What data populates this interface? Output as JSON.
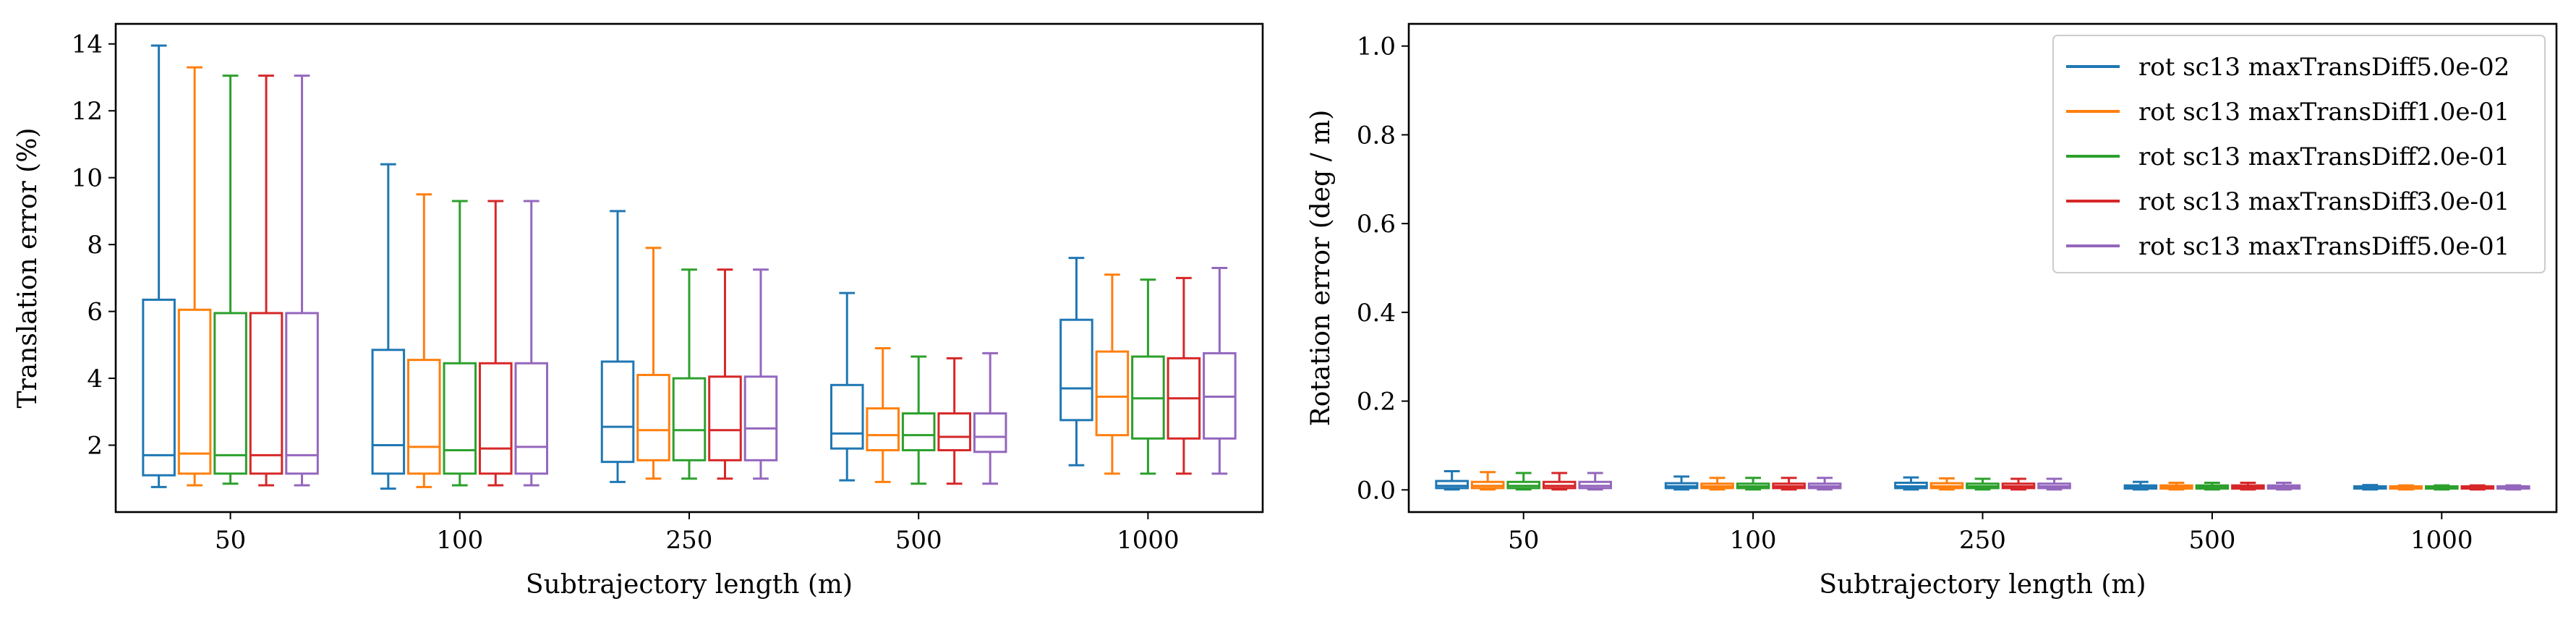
{
  "chart_data": [
    {
      "type": "box",
      "title": "",
      "xlabel": "Subtrajectory length (m)",
      "ylabel": "Translation error (%)",
      "ylim": [
        0.0,
        14.6
      ],
      "yticks": [
        2,
        4,
        6,
        8,
        10,
        12,
        14
      ],
      "categories": [
        "50",
        "100",
        "250",
        "500",
        "1000"
      ],
      "series": [
        {
          "color": "#1f77b4",
          "boxes": [
            {
              "whislo": 0.75,
              "q1": 1.1,
              "med": 1.7,
              "q3": 6.35,
              "whishi": 13.95
            },
            {
              "whislo": 0.7,
              "q1": 1.15,
              "med": 2.0,
              "q3": 4.85,
              "whishi": 10.4
            },
            {
              "whislo": 0.9,
              "q1": 1.5,
              "med": 2.55,
              "q3": 4.5,
              "whishi": 9.0
            },
            {
              "whislo": 0.95,
              "q1": 1.9,
              "med": 2.35,
              "q3": 3.8,
              "whishi": 6.55
            },
            {
              "whislo": 1.4,
              "q1": 2.75,
              "med": 3.7,
              "q3": 5.75,
              "whishi": 7.6
            }
          ]
        },
        {
          "color": "#ff7f0e",
          "boxes": [
            {
              "whislo": 0.8,
              "q1": 1.15,
              "med": 1.75,
              "q3": 6.05,
              "whishi": 13.3
            },
            {
              "whislo": 0.75,
              "q1": 1.15,
              "med": 1.95,
              "q3": 4.55,
              "whishi": 9.5
            },
            {
              "whislo": 1.0,
              "q1": 1.55,
              "med": 2.45,
              "q3": 4.1,
              "whishi": 7.9
            },
            {
              "whislo": 0.9,
              "q1": 1.85,
              "med": 2.3,
              "q3": 3.1,
              "whishi": 4.9
            },
            {
              "whislo": 1.15,
              "q1": 2.3,
              "med": 3.45,
              "q3": 4.8,
              "whishi": 7.1
            }
          ]
        },
        {
          "color": "#2ca02c",
          "boxes": [
            {
              "whislo": 0.85,
              "q1": 1.15,
              "med": 1.7,
              "q3": 5.95,
              "whishi": 13.05
            },
            {
              "whislo": 0.8,
              "q1": 1.15,
              "med": 1.85,
              "q3": 4.45,
              "whishi": 9.3
            },
            {
              "whislo": 1.0,
              "q1": 1.55,
              "med": 2.45,
              "q3": 4.0,
              "whishi": 7.25
            },
            {
              "whislo": 0.85,
              "q1": 1.85,
              "med": 2.3,
              "q3": 2.95,
              "whishi": 4.65
            },
            {
              "whislo": 1.15,
              "q1": 2.2,
              "med": 3.4,
              "q3": 4.65,
              "whishi": 6.95
            }
          ]
        },
        {
          "color": "#d62728",
          "boxes": [
            {
              "whislo": 0.8,
              "q1": 1.15,
              "med": 1.7,
              "q3": 5.95,
              "whishi": 13.05
            },
            {
              "whislo": 0.8,
              "q1": 1.15,
              "med": 1.9,
              "q3": 4.45,
              "whishi": 9.3
            },
            {
              "whislo": 1.0,
              "q1": 1.55,
              "med": 2.45,
              "q3": 4.05,
              "whishi": 7.25
            },
            {
              "whislo": 0.85,
              "q1": 1.85,
              "med": 2.25,
              "q3": 2.95,
              "whishi": 4.6
            },
            {
              "whislo": 1.15,
              "q1": 2.2,
              "med": 3.4,
              "q3": 4.6,
              "whishi": 7.0
            }
          ]
        },
        {
          "color": "#9467bd",
          "boxes": [
            {
              "whislo": 0.8,
              "q1": 1.15,
              "med": 1.7,
              "q3": 5.95,
              "whishi": 13.05
            },
            {
              "whislo": 0.8,
              "q1": 1.15,
              "med": 1.95,
              "q3": 4.45,
              "whishi": 9.3
            },
            {
              "whislo": 1.0,
              "q1": 1.55,
              "med": 2.5,
              "q3": 4.05,
              "whishi": 7.25
            },
            {
              "whislo": 0.85,
              "q1": 1.8,
              "med": 2.25,
              "q3": 2.95,
              "whishi": 4.75
            },
            {
              "whislo": 1.15,
              "q1": 2.2,
              "med": 3.45,
              "q3": 4.75,
              "whishi": 7.3
            }
          ]
        }
      ]
    },
    {
      "type": "box",
      "title": "",
      "xlabel": "Subtrajectory length (m)",
      "ylabel": "Rotation error (deg / m)",
      "ylim": [
        -0.05,
        1.05
      ],
      "yticks": [
        0.0,
        0.2,
        0.4,
        0.6,
        0.8,
        1.0
      ],
      "ytick_labels": [
        "0.0",
        "0.2",
        "0.4",
        "0.6",
        "0.8",
        "1.0"
      ],
      "categories": [
        "50",
        "100",
        "250",
        "500",
        "1000"
      ],
      "legend_position": "top-right",
      "series": [
        {
          "name": "rot sc13 maxTransDiff5.0e-02",
          "color": "#1f77b4",
          "boxes": [
            {
              "whislo": 0.001,
              "q1": 0.004,
              "med": 0.009,
              "q3": 0.02,
              "whishi": 0.042
            },
            {
              "whislo": 0.001,
              "q1": 0.004,
              "med": 0.008,
              "q3": 0.015,
              "whishi": 0.03
            },
            {
              "whislo": 0.001,
              "q1": 0.004,
              "med": 0.008,
              "q3": 0.016,
              "whishi": 0.028
            },
            {
              "whislo": 0.001,
              "q1": 0.003,
              "med": 0.006,
              "q3": 0.01,
              "whishi": 0.018
            },
            {
              "whislo": 0.001,
              "q1": 0.003,
              "med": 0.005,
              "q3": 0.008,
              "whishi": 0.011
            }
          ]
        },
        {
          "name": "rot sc13 maxTransDiff1.0e-01",
          "color": "#ff7f0e",
          "boxes": [
            {
              "whislo": 0.001,
              "q1": 0.004,
              "med": 0.009,
              "q3": 0.018,
              "whishi": 0.04
            },
            {
              "whislo": 0.001,
              "q1": 0.004,
              "med": 0.008,
              "q3": 0.014,
              "whishi": 0.027
            },
            {
              "whislo": 0.001,
              "q1": 0.004,
              "med": 0.008,
              "q3": 0.015,
              "whishi": 0.026
            },
            {
              "whislo": 0.001,
              "q1": 0.003,
              "med": 0.006,
              "q3": 0.01,
              "whishi": 0.016
            },
            {
              "whislo": 0.001,
              "q1": 0.003,
              "med": 0.005,
              "q3": 0.008,
              "whishi": 0.01
            }
          ]
        },
        {
          "name": "rot sc13 maxTransDiff2.0e-01",
          "color": "#2ca02c",
          "boxes": [
            {
              "whislo": 0.001,
              "q1": 0.004,
              "med": 0.009,
              "q3": 0.018,
              "whishi": 0.038
            },
            {
              "whislo": 0.001,
              "q1": 0.004,
              "med": 0.008,
              "q3": 0.014,
              "whishi": 0.027
            },
            {
              "whislo": 0.001,
              "q1": 0.004,
              "med": 0.008,
              "q3": 0.014,
              "whishi": 0.025
            },
            {
              "whislo": 0.001,
              "q1": 0.003,
              "med": 0.006,
              "q3": 0.01,
              "whishi": 0.016
            },
            {
              "whislo": 0.001,
              "q1": 0.003,
              "med": 0.005,
              "q3": 0.008,
              "whishi": 0.01
            }
          ]
        },
        {
          "name": "rot sc13 maxTransDiff3.0e-01",
          "color": "#d62728",
          "boxes": [
            {
              "whislo": 0.001,
              "q1": 0.004,
              "med": 0.009,
              "q3": 0.018,
              "whishi": 0.038
            },
            {
              "whislo": 0.001,
              "q1": 0.004,
              "med": 0.008,
              "q3": 0.014,
              "whishi": 0.027
            },
            {
              "whislo": 0.001,
              "q1": 0.004,
              "med": 0.008,
              "q3": 0.014,
              "whishi": 0.025
            },
            {
              "whislo": 0.001,
              "q1": 0.003,
              "med": 0.006,
              "q3": 0.01,
              "whishi": 0.016
            },
            {
              "whislo": 0.001,
              "q1": 0.003,
              "med": 0.005,
              "q3": 0.008,
              "whishi": 0.01
            }
          ]
        },
        {
          "name": "rot sc13 maxTransDiff5.0e-01",
          "color": "#9467bd",
          "boxes": [
            {
              "whislo": 0.001,
              "q1": 0.004,
              "med": 0.009,
              "q3": 0.018,
              "whishi": 0.038
            },
            {
              "whislo": 0.001,
              "q1": 0.004,
              "med": 0.008,
              "q3": 0.014,
              "whishi": 0.027
            },
            {
              "whislo": 0.001,
              "q1": 0.004,
              "med": 0.008,
              "q3": 0.014,
              "whishi": 0.025
            },
            {
              "whislo": 0.001,
              "q1": 0.003,
              "med": 0.006,
              "q3": 0.01,
              "whishi": 0.016
            },
            {
              "whislo": 0.001,
              "q1": 0.003,
              "med": 0.005,
              "q3": 0.008,
              "whishi": 0.01
            }
          ]
        }
      ]
    }
  ]
}
